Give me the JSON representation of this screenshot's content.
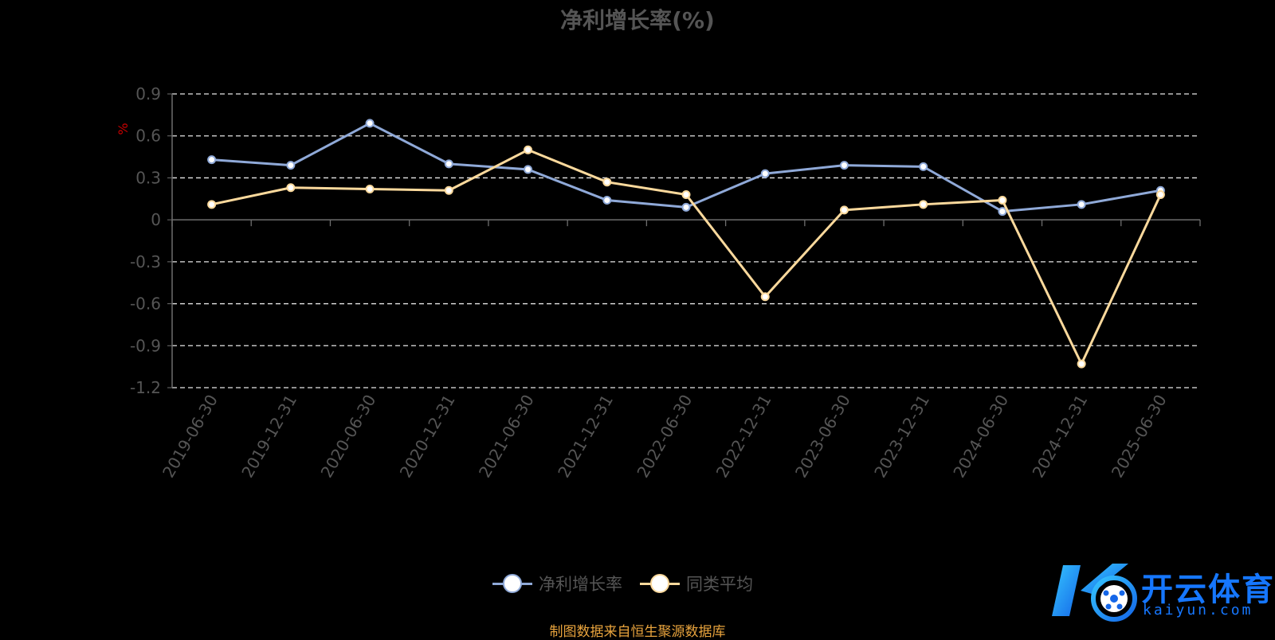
{
  "chart_data": {
    "type": "line",
    "title": "净利增长率(%)",
    "ylabel": "%",
    "ylim": [
      -1.2,
      0.9
    ],
    "yticks": [
      "0.9",
      "0.6",
      "0.3",
      "0",
      "-0.3",
      "-0.6",
      "-0.9",
      "-1.2"
    ],
    "categories": [
      "2019-06-30",
      "2019-12-31",
      "2020-06-30",
      "2020-12-31",
      "2021-06-30",
      "2021-12-31",
      "2022-06-30",
      "2022-12-31",
      "2023-06-30",
      "2023-12-31",
      "2024-06-30",
      "2024-12-31",
      "2025-06-30"
    ],
    "series": [
      {
        "name": "净利增长率",
        "color": "#8fa9d8",
        "values": [
          0.43,
          0.39,
          0.69,
          0.4,
          0.36,
          0.14,
          0.09,
          0.33,
          0.39,
          0.38,
          0.06,
          0.11,
          0.21
        ]
      },
      {
        "name": "同类平均",
        "color": "#fbd99c",
        "values": [
          0.11,
          0.23,
          0.22,
          0.21,
          0.5,
          0.27,
          0.18,
          -0.55,
          0.07,
          0.11,
          0.14,
          -1.03,
          0.18
        ]
      }
    ],
    "grid": true,
    "legend_position": "bottom-center"
  },
  "source_text": "制图数据来自恒生聚源数据库",
  "watermark": {
    "brand": "开云体育",
    "domain": "kaiyun.com",
    "color": "#1677ff"
  }
}
